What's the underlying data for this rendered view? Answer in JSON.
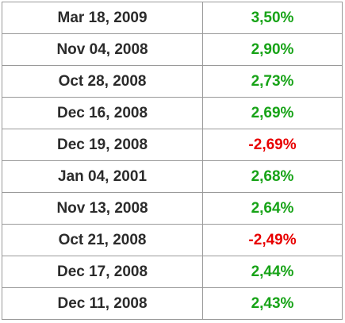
{
  "table": {
    "rows": [
      [
        "Mar 18, 2009",
        "3,50%"
      ],
      [
        "Nov 04, 2008",
        "2,90%"
      ],
      [
        "Oct 28, 2008",
        "2,73%"
      ],
      [
        "Dec 16, 2008",
        "2,69%"
      ],
      [
        "Dec 19, 2008",
        "-2,69%"
      ],
      [
        "Jan 04, 2001",
        "2,68%"
      ],
      [
        "Nov 13, 2008",
        "2,64%"
      ],
      [
        "Oct 21, 2008",
        "-2,49%"
      ],
      [
        "Dec 17, 2008",
        "2,44%"
      ],
      [
        "Dec 11, 2008",
        "2,43%"
      ]
    ],
    "positive_color": "#17a317",
    "negative_color": "#e80000"
  }
}
